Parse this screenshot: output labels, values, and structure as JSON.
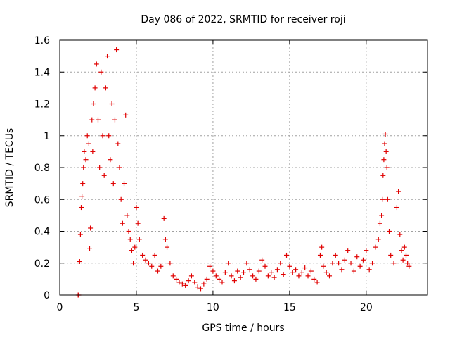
{
  "chart_data": {
    "type": "scatter",
    "title": "Day 086 of 2022, SRMTID for receiver roji",
    "xlabel": "GPS time / hours",
    "ylabel": "SRMTID / TECUs",
    "xlim": [
      0,
      24
    ],
    "ylim": [
      0,
      1.6
    ],
    "xticks": [
      0,
      5,
      10,
      15,
      20
    ],
    "xtick_labels": [
      "0",
      "5",
      "10",
      "15",
      "20"
    ],
    "yticks": [
      0,
      0.2,
      0.4,
      0.6,
      0.8,
      1.0,
      1.2,
      1.4,
      1.6
    ],
    "ytick_labels": [
      "0",
      "0.2",
      "0.4",
      "0.6",
      "0.8",
      "1",
      "1.2",
      "1.4",
      "1.6"
    ],
    "grid": true,
    "marker": "+",
    "color": "#e00000",
    "x_range_of_data": [
      1.2,
      22.8
    ],
    "series": [
      {
        "name": "SRMTID",
        "points": [
          [
            1.2,
            0.0
          ],
          [
            1.25,
            0.0
          ],
          [
            1.3,
            0.21
          ],
          [
            1.35,
            0.38
          ],
          [
            1.4,
            0.55
          ],
          [
            1.45,
            0.62
          ],
          [
            1.5,
            0.7
          ],
          [
            1.55,
            0.8
          ],
          [
            1.6,
            0.9
          ],
          [
            1.7,
            0.85
          ],
          [
            1.8,
            1.0
          ],
          [
            1.9,
            0.95
          ],
          [
            1.95,
            0.29
          ],
          [
            2.0,
            0.42
          ],
          [
            2.1,
            1.1
          ],
          [
            2.15,
            0.9
          ],
          [
            2.2,
            1.2
          ],
          [
            2.3,
            1.3
          ],
          [
            2.4,
            1.45
          ],
          [
            2.5,
            1.1
          ],
          [
            2.6,
            0.8
          ],
          [
            2.7,
            1.4
          ],
          [
            2.8,
            1.0
          ],
          [
            2.9,
            0.75
          ],
          [
            3.0,
            1.3
          ],
          [
            3.1,
            1.5
          ],
          [
            3.2,
            1.0
          ],
          [
            3.3,
            0.85
          ],
          [
            3.4,
            1.2
          ],
          [
            3.5,
            0.7
          ],
          [
            3.6,
            1.1
          ],
          [
            3.7,
            1.54
          ],
          [
            3.8,
            0.95
          ],
          [
            3.9,
            0.8
          ],
          [
            4.0,
            0.6
          ],
          [
            4.1,
            0.45
          ],
          [
            4.2,
            0.7
          ],
          [
            4.3,
            1.13
          ],
          [
            4.4,
            0.5
          ],
          [
            4.5,
            0.4
          ],
          [
            4.6,
            0.35
          ],
          [
            4.7,
            0.28
          ],
          [
            4.8,
            0.2
          ],
          [
            4.9,
            0.3
          ],
          [
            5.0,
            0.55
          ],
          [
            5.1,
            0.45
          ],
          [
            5.2,
            0.35
          ],
          [
            5.4,
            0.25
          ],
          [
            5.6,
            0.22
          ],
          [
            5.8,
            0.2
          ],
          [
            6.0,
            0.18
          ],
          [
            6.2,
            0.25
          ],
          [
            6.4,
            0.15
          ],
          [
            6.6,
            0.18
          ],
          [
            6.8,
            0.48
          ],
          [
            6.9,
            0.35
          ],
          [
            7.0,
            0.3
          ],
          [
            7.2,
            0.2
          ],
          [
            7.4,
            0.12
          ],
          [
            7.6,
            0.1
          ],
          [
            7.8,
            0.08
          ],
          [
            8.0,
            0.07
          ],
          [
            8.2,
            0.06
          ],
          [
            8.4,
            0.09
          ],
          [
            8.6,
            0.12
          ],
          [
            8.8,
            0.08
          ],
          [
            9.0,
            0.05
          ],
          [
            9.2,
            0.04
          ],
          [
            9.4,
            0.07
          ],
          [
            9.6,
            0.1
          ],
          [
            9.8,
            0.18
          ],
          [
            10.0,
            0.15
          ],
          [
            10.2,
            0.12
          ],
          [
            10.4,
            0.1
          ],
          [
            10.6,
            0.08
          ],
          [
            10.8,
            0.14
          ],
          [
            11.0,
            0.2
          ],
          [
            11.2,
            0.12
          ],
          [
            11.4,
            0.09
          ],
          [
            11.6,
            0.15
          ],
          [
            11.8,
            0.11
          ],
          [
            12.0,
            0.14
          ],
          [
            12.2,
            0.2
          ],
          [
            12.4,
            0.16
          ],
          [
            12.6,
            0.12
          ],
          [
            12.8,
            0.1
          ],
          [
            13.0,
            0.15
          ],
          [
            13.2,
            0.22
          ],
          [
            13.4,
            0.18
          ],
          [
            13.6,
            0.12
          ],
          [
            13.8,
            0.14
          ],
          [
            14.0,
            0.11
          ],
          [
            14.2,
            0.16
          ],
          [
            14.4,
            0.2
          ],
          [
            14.6,
            0.13
          ],
          [
            14.8,
            0.25
          ],
          [
            15.0,
            0.18
          ],
          [
            15.2,
            0.14
          ],
          [
            15.4,
            0.16
          ],
          [
            15.6,
            0.12
          ],
          [
            15.8,
            0.14
          ],
          [
            16.0,
            0.17
          ],
          [
            16.2,
            0.12
          ],
          [
            16.4,
            0.15
          ],
          [
            16.6,
            0.1
          ],
          [
            16.8,
            0.08
          ],
          [
            17.0,
            0.25
          ],
          [
            17.1,
            0.3
          ],
          [
            17.2,
            0.18
          ],
          [
            17.4,
            0.14
          ],
          [
            17.6,
            0.12
          ],
          [
            17.8,
            0.2
          ],
          [
            18.0,
            0.25
          ],
          [
            18.2,
            0.2
          ],
          [
            18.4,
            0.16
          ],
          [
            18.6,
            0.22
          ],
          [
            18.8,
            0.28
          ],
          [
            19.0,
            0.2
          ],
          [
            19.2,
            0.15
          ],
          [
            19.4,
            0.24
          ],
          [
            19.6,
            0.18
          ],
          [
            19.8,
            0.22
          ],
          [
            20.0,
            0.28
          ],
          [
            20.2,
            0.16
          ],
          [
            20.4,
            0.2
          ],
          [
            20.6,
            0.3
          ],
          [
            20.8,
            0.35
          ],
          [
            20.9,
            0.45
          ],
          [
            21.0,
            0.5
          ],
          [
            21.05,
            0.6
          ],
          [
            21.1,
            0.75
          ],
          [
            21.15,
            0.85
          ],
          [
            21.2,
            0.95
          ],
          [
            21.25,
            1.01
          ],
          [
            21.3,
            0.9
          ],
          [
            21.35,
            0.8
          ],
          [
            21.4,
            0.6
          ],
          [
            21.5,
            0.4
          ],
          [
            21.6,
            0.25
          ],
          [
            21.8,
            0.2
          ],
          [
            22.0,
            0.55
          ],
          [
            22.1,
            0.65
          ],
          [
            22.2,
            0.38
          ],
          [
            22.3,
            0.28
          ],
          [
            22.4,
            0.22
          ],
          [
            22.5,
            0.3
          ],
          [
            22.6,
            0.25
          ],
          [
            22.7,
            0.2
          ],
          [
            22.8,
            0.18
          ]
        ]
      }
    ]
  }
}
